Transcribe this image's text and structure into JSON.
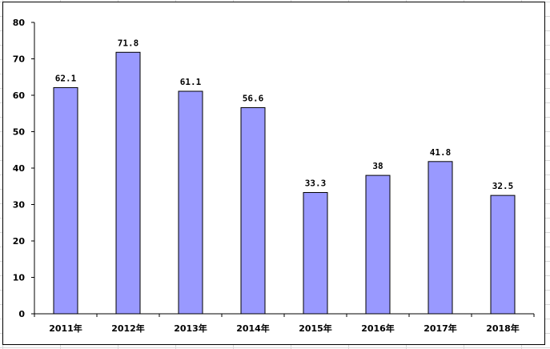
{
  "chart_data": {
    "type": "bar",
    "categories": [
      "2011年",
      "2012年",
      "2013年",
      "2014年",
      "2015年",
      "2016年",
      "2017年",
      "2018年"
    ],
    "values": [
      62.1,
      71.8,
      61.1,
      56.6,
      33.3,
      38,
      41.8,
      32.5
    ],
    "value_labels": [
      "62.1",
      "71.8",
      "61.1",
      "56.6",
      "33.3",
      "38",
      "41.8",
      "32.5"
    ],
    "title": "",
    "xlabel": "",
    "ylabel": "",
    "ylim": [
      0,
      80
    ],
    "yticks": [
      0,
      10,
      20,
      30,
      40,
      50,
      60,
      70,
      80
    ],
    "grid": false,
    "legend": "none",
    "bar_color": "#9999ff",
    "bar_stroke": "#000000"
  }
}
